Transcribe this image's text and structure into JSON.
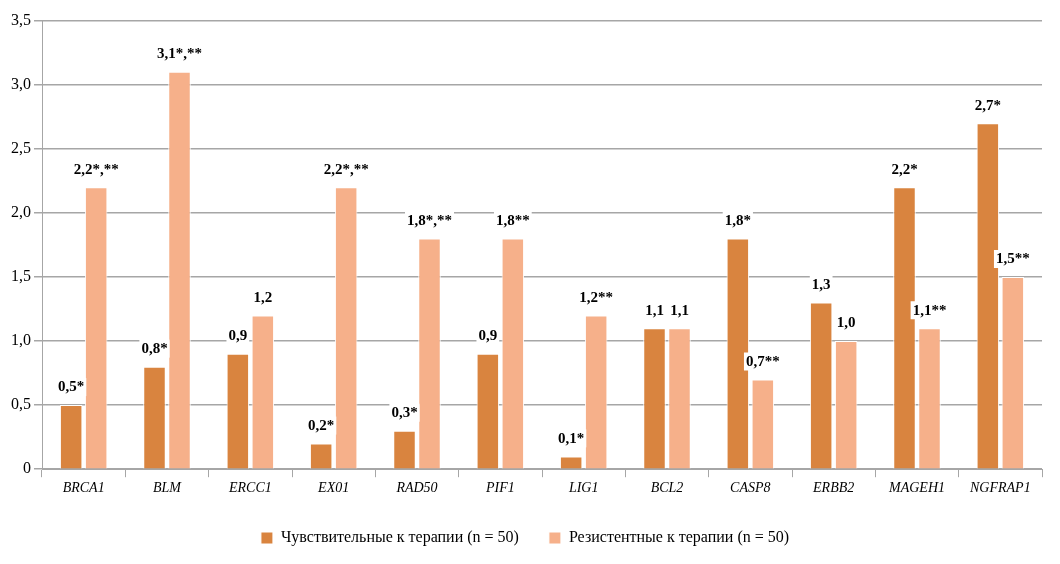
{
  "chart_data": {
    "type": "bar",
    "categories": [
      "BRCA1",
      "BLM",
      "ERCC1",
      "EX01",
      "RAD50",
      "PIF1",
      "LIG1",
      "BCL2",
      "CASP8",
      "ERBB2",
      "MAGEH1",
      "NGFRAP1"
    ],
    "series": [
      {
        "name": "Чувствительные к терапии (n = 50)",
        "color": "#d9843f",
        "values": [
          0.5,
          0.8,
          0.9,
          0.2,
          0.3,
          0.9,
          0.1,
          1.1,
          1.8,
          1.3,
          2.2,
          2.7
        ],
        "value_labels": [
          "0,5*",
          "0,8*",
          "0,9",
          "0,2*",
          "0,3*",
          "0,9",
          "0,1*",
          "1,1",
          "1,8*",
          "1,3",
          "2,2*",
          "2,7*"
        ]
      },
      {
        "name": "Резистентные к терапии (n = 50)",
        "color": "#f6b08a",
        "values": [
          2.2,
          3.1,
          1.2,
          2.2,
          1.8,
          1.8,
          1.2,
          1.1,
          0.7,
          1.0,
          1.1,
          1.5
        ],
        "value_labels": [
          "2,2*,**",
          "3,1*,**",
          "1,2",
          "2,2*,**",
          "1,8*,**",
          "1,8**",
          "1,2**",
          "1,1",
          "0,7**",
          "1,0",
          "1,1**",
          "1,5**"
        ]
      }
    ],
    "ylim": [
      0,
      3.5
    ],
    "yticks": [
      0,
      {
        "value": 0.5,
        "label": "0,5"
      },
      {
        "value": 1,
        "label": "1,0"
      },
      {
        "value": 1.5,
        "label": "1,5"
      },
      {
        "value": 2,
        "label": "2,0"
      },
      {
        "value": 2.5,
        "label": "2,5"
      },
      {
        "value": 3,
        "label": "3,0"
      },
      {
        "value": 3.5,
        "label": "3,5"
      }
    ],
    "grid": "y",
    "legend": "bottom"
  }
}
